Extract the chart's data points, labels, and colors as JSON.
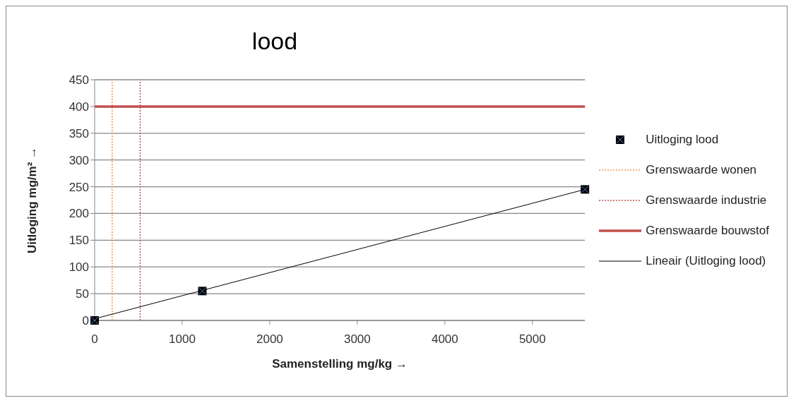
{
  "chart_data": {
    "type": "scatter",
    "title": "lood",
    "xlabel": "Samenstelling mg/kg →",
    "ylabel": "Uitloging mg/m² →",
    "xlim": [
      0,
      5600
    ],
    "xticks": [
      0,
      1000,
      2000,
      3000,
      4000,
      5000
    ],
    "ylim": [
      0,
      450
    ],
    "yticks": [
      0,
      50,
      100,
      150,
      200,
      250,
      300,
      350,
      400,
      450
    ],
    "grid": "y",
    "legend": "right",
    "series": [
      {
        "name": "Uitloging lood",
        "color": "#000000",
        "marker": "square",
        "x": [
          0,
          1230,
          5600
        ],
        "values": [
          0,
          55,
          245
        ]
      },
      {
        "name": "Grenswaarde wonen",
        "type": "line",
        "color": "#f79646",
        "line_style": "dotted",
        "x": [
          200,
          200
        ],
        "values": [
          0,
          450
        ]
      },
      {
        "name": "Grenswaarde industrie",
        "type": "line",
        "color": "#c0504d",
        "line_style": "dotted",
        "x": [
          520,
          520
        ],
        "values": [
          0,
          450
        ]
      },
      {
        "name": "Grenswaarde bouwstof",
        "type": "line",
        "color": "#c0504d",
        "line_style": "solid",
        "x": [
          0,
          5600
        ],
        "values": [
          400,
          400
        ]
      },
      {
        "name": "Lineair (Uitloging lood)",
        "type": "line",
        "color": "#000000",
        "x": [
          0,
          5600
        ],
        "values": [
          3,
          245
        ]
      }
    ]
  }
}
